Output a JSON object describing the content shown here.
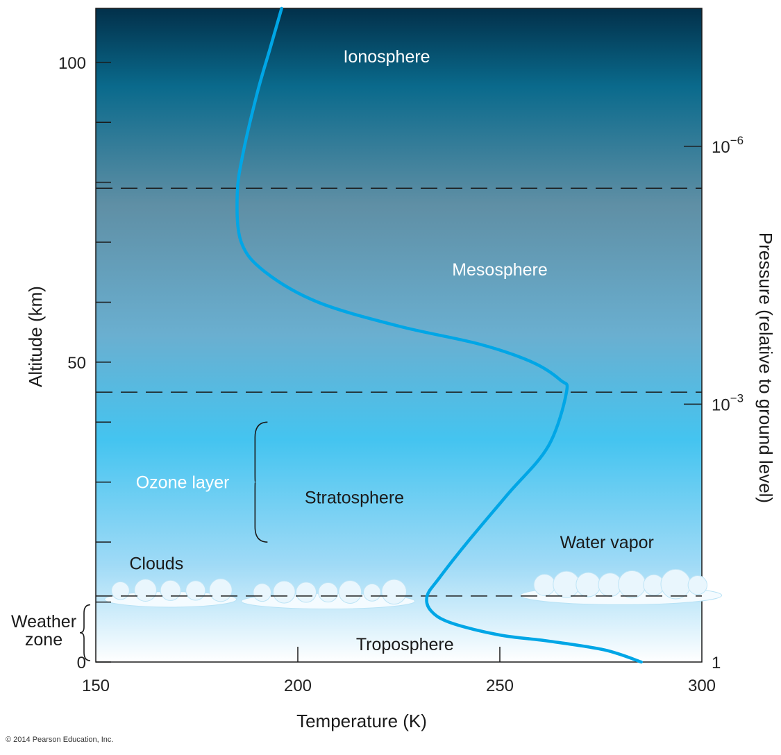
{
  "chart_data": {
    "type": "line",
    "xlabel": "Temperature (K)",
    "ylabel": "Altitude (km)",
    "y2label": "Pressure (relative to ground level)",
    "xlim": [
      150,
      300
    ],
    "ylim": [
      0,
      109
    ],
    "x_ticks": [
      150,
      200,
      250,
      300
    ],
    "y_ticks": [
      0,
      50,
      100
    ],
    "y_minor_ticks": [
      10,
      20,
      30,
      40,
      60,
      70,
      80,
      90
    ],
    "pressure_ticks": [
      {
        "base": "10",
        "exp": "−6",
        "altitude": 86
      },
      {
        "base": "10",
        "exp": "−3",
        "altitude": 43
      },
      {
        "base": "1",
        "exp": "",
        "altitude": 0
      }
    ],
    "series": [
      {
        "color": "#00a6e6",
        "x": [
          285,
          276,
          262,
          250,
          238,
          233,
          232,
          235,
          242,
          252,
          262,
          266.5,
          265,
          258,
          245,
          225,
          205,
          192,
          186,
          185,
          186.5,
          190,
          193,
          196
        ],
        "y": [
          0,
          2,
          3.5,
          4.5,
          6.5,
          8.5,
          11,
          14,
          20,
          28,
          36,
          45,
          47,
          50,
          53,
          56,
          60,
          65,
          70,
          78,
          85,
          95,
          102,
          109
        ]
      }
    ],
    "boundaries": [
      11,
      45,
      79
    ],
    "regions": [
      {
        "label": "Ionosphere",
        "x": 222,
        "y": 101,
        "color": "#ffffff"
      },
      {
        "label": "Mesosphere",
        "x": 250,
        "y": 65.5,
        "color": "#ffffff"
      },
      {
        "label": "Stratosphere",
        "x": 214,
        "y": 27.5,
        "color": "#1a1a1a"
      },
      {
        "label": "Troposphere",
        "x": 226.5,
        "y": 3,
        "color": "#1a1a1a"
      },
      {
        "label": "Ozone layer",
        "x": 171.5,
        "y": 30,
        "color": "#ffffff"
      },
      {
        "label": "Clouds",
        "x": 165,
        "y": 16.5,
        "color": "#1a1a1a"
      },
      {
        "label": "Water vapor",
        "x": 276.5,
        "y": 20,
        "color": "#1a1a1a"
      }
    ],
    "ozone_brace": [
      20,
      40
    ],
    "weather_zone": {
      "line1": "Weather",
      "line2": "zone",
      "range": [
        0,
        10
      ]
    },
    "background_gradient": [
      "#02304a",
      "#0a6a8c",
      "#5f8fa5",
      "#6aafd0",
      "#44c4f0",
      "#9fdaf6",
      "#ffffff"
    ]
  },
  "copyright": "© 2014 Pearson Education, Inc."
}
